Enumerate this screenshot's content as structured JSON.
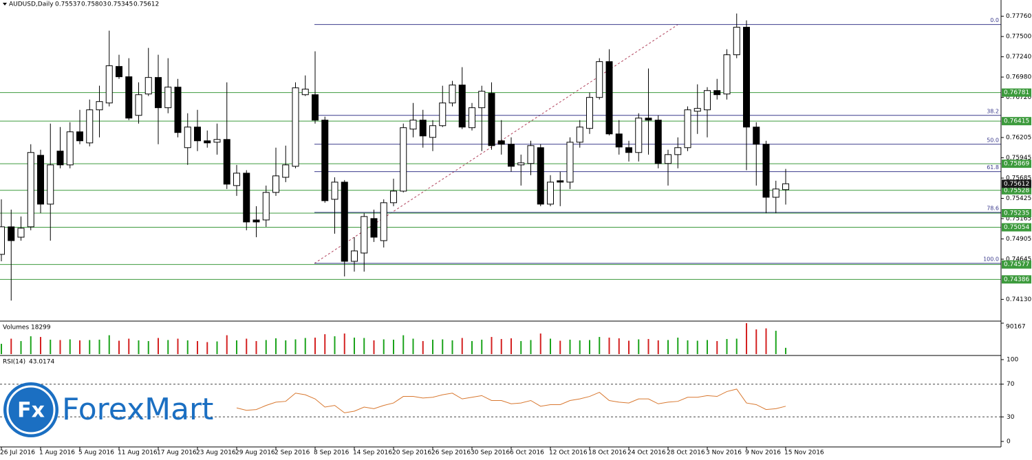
{
  "chart_data": [
    {
      "type": "candlestick",
      "title": "AUDUSD,Daily",
      "categories": [
        "26 Jul 2016",
        null,
        null,
        null,
        "1 Aug 2016",
        null,
        null,
        null,
        "5 Aug 2016",
        null,
        null,
        null,
        "11 Aug 2016",
        null,
        null,
        null,
        "17 Aug 2016",
        null,
        null,
        null,
        "23 Aug 2016",
        null,
        null,
        null,
        "29 Aug 2016",
        null,
        null,
        null,
        "2 Sep 2016",
        null,
        null,
        null,
        "8 Sep 2016",
        null,
        null,
        null,
        "14 Sep 2016",
        null,
        null,
        null,
        "20 Sep 2016",
        null,
        null,
        null,
        "26 Sep 2016",
        null,
        null,
        null,
        "30 Sep 2016",
        null,
        null,
        null,
        "6 Oct 2016",
        null,
        null,
        null,
        "12 Oct 2016",
        null,
        null,
        null,
        "18 Oct 2016",
        null,
        null,
        null,
        "24 Oct 2016",
        null,
        null,
        null,
        "28 Oct 2016",
        null,
        null,
        null,
        "3 Nov 2016",
        null,
        null,
        null,
        "9 Nov 2016",
        null,
        null,
        null,
        "15 Nov 2016"
      ],
      "open": [
        0.74707,
        0.7506,
        0.74927,
        0.7506,
        0.75977,
        0.75351,
        0.76031,
        0.75854,
        0.76278,
        0.76136,
        0.7656,
        0.76648,
        0.77116,
        0.76984,
        0.76489,
        0.76763,
        0.76975,
        0.76587,
        0.76851,
        0.76075,
        0.76339,
        0.76163,
        0.76145,
        0.7618,
        0.75589,
        0.75748,
        0.75148,
        0.75148,
        0.75501,
        0.75695,
        0.75836,
        0.76754,
        0.76754,
        0.76428,
        0.75413,
        0.75633,
        0.74618,
        0.74724,
        0.75166,
        0.74883,
        0.75369,
        0.75518,
        0.76313,
        0.76428,
        0.76207,
        0.76357,
        0.76648,
        0.76878,
        0.76331,
        0.76587,
        0.76772,
        0.76163,
        0.76119,
        0.75854,
        0.75872,
        0.76075,
        0.75351,
        0.75651,
        0.75633,
        0.76145,
        0.76322,
        0.76719,
        0.77178,
        0.76251,
        0.76075,
        0.76013,
        0.76454,
        0.76428,
        0.75872,
        0.75986,
        0.76075,
        0.76542,
        0.7656,
        0.76807,
        0.76763,
        0.77266,
        0.77619,
        0.76339,
        0.76119,
        0.75439,
        0.75537
      ],
      "high": [
        0.75413,
        0.7528,
        0.75192,
        0.76119,
        0.76048,
        0.76384,
        0.76339,
        0.76401,
        0.7656,
        0.76692,
        0.76869,
        0.77575,
        0.77266,
        0.77222,
        0.76913,
        0.77354,
        0.77266,
        0.77222,
        0.76957,
        0.76516,
        0.7656,
        0.76295,
        0.76384,
        0.76913,
        0.75854,
        0.75786,
        0.75325,
        0.75589,
        0.76075,
        0.76101,
        0.76913,
        0.77001,
        0.7731,
        0.76472,
        0.75695,
        0.7566,
        0.74927,
        0.75236,
        0.7528,
        0.75413,
        0.75677,
        0.76384,
        0.76648,
        0.7656,
        0.76428,
        0.76869,
        0.76931,
        0.77107,
        0.76648,
        0.76869,
        0.76913,
        0.76428,
        0.76207,
        0.75986,
        0.76163,
        0.76119,
        0.75722,
        0.75767,
        0.76207,
        0.76428,
        0.76781,
        0.77222,
        0.77337,
        0.76428,
        0.76163,
        0.76516,
        0.7709,
        0.76489,
        0.76048,
        0.76207,
        0.76604,
        0.76887,
        0.76851,
        0.76957,
        0.77337,
        0.77795,
        0.77707,
        0.76401,
        0.76163,
        0.75651,
        0.75803
      ],
      "low": [
        0.74618,
        0.74115,
        0.74883,
        0.75016,
        0.75236,
        0.74883,
        0.7581,
        0.7581,
        0.76119,
        0.76092,
        0.76207,
        0.76604,
        0.76957,
        0.76428,
        0.76384,
        0.76737,
        0.76119,
        0.76516,
        0.76207,
        0.75854,
        0.76031,
        0.76075,
        0.75986,
        0.75545,
        0.75457,
        0.75016,
        0.74927,
        0.7506,
        0.75457,
        0.75633,
        0.7581,
        0.76737,
        0.76384,
        0.75369,
        0.74972,
        0.74424,
        0.74486,
        0.74486,
        0.74866,
        0.74795,
        0.75325,
        0.75501,
        0.76207,
        0.76075,
        0.76031,
        0.76339,
        0.76604,
        0.76313,
        0.76295,
        0.76031,
        0.76048,
        0.75986,
        0.75767,
        0.75589,
        0.75722,
        0.75325,
        0.75325,
        0.75325,
        0.75545,
        0.76075,
        0.76251,
        0.76692,
        0.76233,
        0.75986,
        0.75898,
        0.75898,
        0.75986,
        0.7581,
        0.75589,
        0.7581,
        0.76031,
        0.76251,
        0.76207,
        0.76692,
        0.76692,
        0.77222,
        0.75786,
        0.75589,
        0.75236,
        0.75236,
        0.75345
      ],
      "close": [
        0.7506,
        0.74883,
        0.75042,
        0.76013,
        0.75351,
        0.75854,
        0.75854,
        0.76278,
        0.76163,
        0.7656,
        0.76666,
        0.77125,
        0.76984,
        0.76454,
        0.76754,
        0.76975,
        0.76587,
        0.76851,
        0.76269,
        0.76339,
        0.76163,
        0.76136,
        0.7618,
        0.75607,
        0.75748,
        0.75122,
        0.75122,
        0.75501,
        0.75713,
        0.75854,
        0.76842,
        0.76825,
        0.76428,
        0.75395,
        0.75633,
        0.74618,
        0.74751,
        0.75192,
        0.74927,
        0.75369,
        0.75518,
        0.76331,
        0.76428,
        0.76225,
        0.76357,
        0.76648,
        0.76878,
        0.76339,
        0.76587,
        0.76798,
        0.76101,
        0.76119,
        0.75836,
        0.7588,
        0.76101,
        0.75351,
        0.75633,
        0.75633,
        0.76145,
        0.76339,
        0.76719,
        0.77178,
        0.76251,
        0.76083,
        0.76013,
        0.76454,
        0.76428,
        0.75872,
        0.75986,
        0.76075,
        0.7656,
        0.76578,
        0.76807,
        0.76754,
        0.77266,
        0.77619,
        0.76339,
        0.76119,
        0.75439,
        0.75545,
        0.75612
      ],
      "up_color": "#ffffff",
      "down_color": "#000000",
      "ylim": [
        0.7386,
        0.7788
      ],
      "yticks": [
        {
          "value": 0.7776,
          "label": "0.77760"
        },
        {
          "value": 0.775,
          "label": "0.77500"
        },
        {
          "value": 0.7724,
          "label": "0.77240"
        },
        {
          "value": 0.7698,
          "label": "0.76980"
        },
        {
          "value": 0.7672,
          "label": "0.76720"
        },
        0.76205,
        0.75945,
        0.75685,
        0.75425,
        0.75165,
        0.74905,
        0.74645,
        {
          "value": 0.7413,
          "label": "0.74130"
        }
      ],
      "levels": [
        0.76781,
        0.76415,
        0.75869,
        0.75528,
        0.75235,
        0.75054,
        0.74577,
        0.74386
      ],
      "level_color": "#3c9a3c",
      "fib_levels": [
        {
          "ratio": {
            "value": 0,
            "label": "0.0"
          },
          "price": 0.77654
        },
        {
          "ratio": 38.2,
          "price": 0.76489
        },
        {
          "ratio": {
            "value": 50,
            "label": "50.0"
          },
          "price": 0.76119
        },
        {
          "ratio": 61.8,
          "price": 0.75767
        },
        {
          "ratio": 78.6,
          "price": 0.75245
        },
        {
          "ratio": {
            "value": 100,
            "label": "100.0"
          },
          "price": 0.74592
        }
      ],
      "fib_color": "#3a3a8c"
    },
    {
      "type": "volume",
      "title": "Volumes",
      "values": [
        30000,
        45000,
        38000,
        52000,
        50000,
        42000,
        41000,
        43000,
        40000,
        41000,
        42000,
        55000,
        39000,
        45000,
        40000,
        38000,
        47000,
        41000,
        45000,
        40000,
        38000,
        35000,
        37000,
        55000,
        40000,
        45000,
        38000,
        41000,
        46000,
        40000,
        43000,
        47000,
        48000,
        58000,
        52000,
        60000,
        48000,
        47000,
        40000,
        43000,
        42000,
        55000,
        45000,
        38000,
        42000,
        43000,
        40000,
        47000,
        38000,
        42000,
        50000,
        44000,
        46000,
        38000,
        41000,
        60000,
        45000,
        39000,
        42000,
        40000,
        41000,
        50000,
        48000,
        46000,
        39000,
        43000,
        44000,
        40000,
        41000,
        48000,
        40000,
        39000,
        41000,
        38000,
        44000,
        45000,
        90167,
        72000,
        75000,
        68000,
        18299
      ],
      "up_color": "#1aa31a",
      "down_color": "#d42020",
      "ylim": [
        0,
        90167
      ],
      "yticks": [
        90167
      ]
    },
    {
      "type": "line",
      "title": "RSI(14)",
      "values": [
        null,
        null,
        null,
        null,
        null,
        null,
        null,
        null,
        null,
        null,
        null,
        null,
        null,
        null,
        null,
        null,
        null,
        null,
        null,
        null,
        null,
        null,
        null,
        null,
        41,
        38,
        39,
        44,
        48,
        49,
        59,
        57,
        52,
        42,
        44,
        35,
        37,
        42,
        40,
        44,
        47,
        55,
        55,
        53,
        54,
        57,
        59,
        52,
        54,
        56,
        50,
        50,
        46,
        47,
        50,
        43,
        45,
        45,
        50,
        52,
        55,
        60,
        50,
        48,
        47,
        52,
        52,
        46,
        48,
        49,
        54,
        54,
        56,
        55,
        61,
        64,
        47,
        45,
        39,
        40,
        43.0174
      ],
      "color": "#d8772e",
      "dashed_levels": true,
      "ylim": [
        0,
        100
      ],
      "yticks": [
        100,
        70,
        30,
        0
      ]
    }
  ],
  "watermark": {
    "icon": "Fx",
    "text": "ForexMart"
  }
}
